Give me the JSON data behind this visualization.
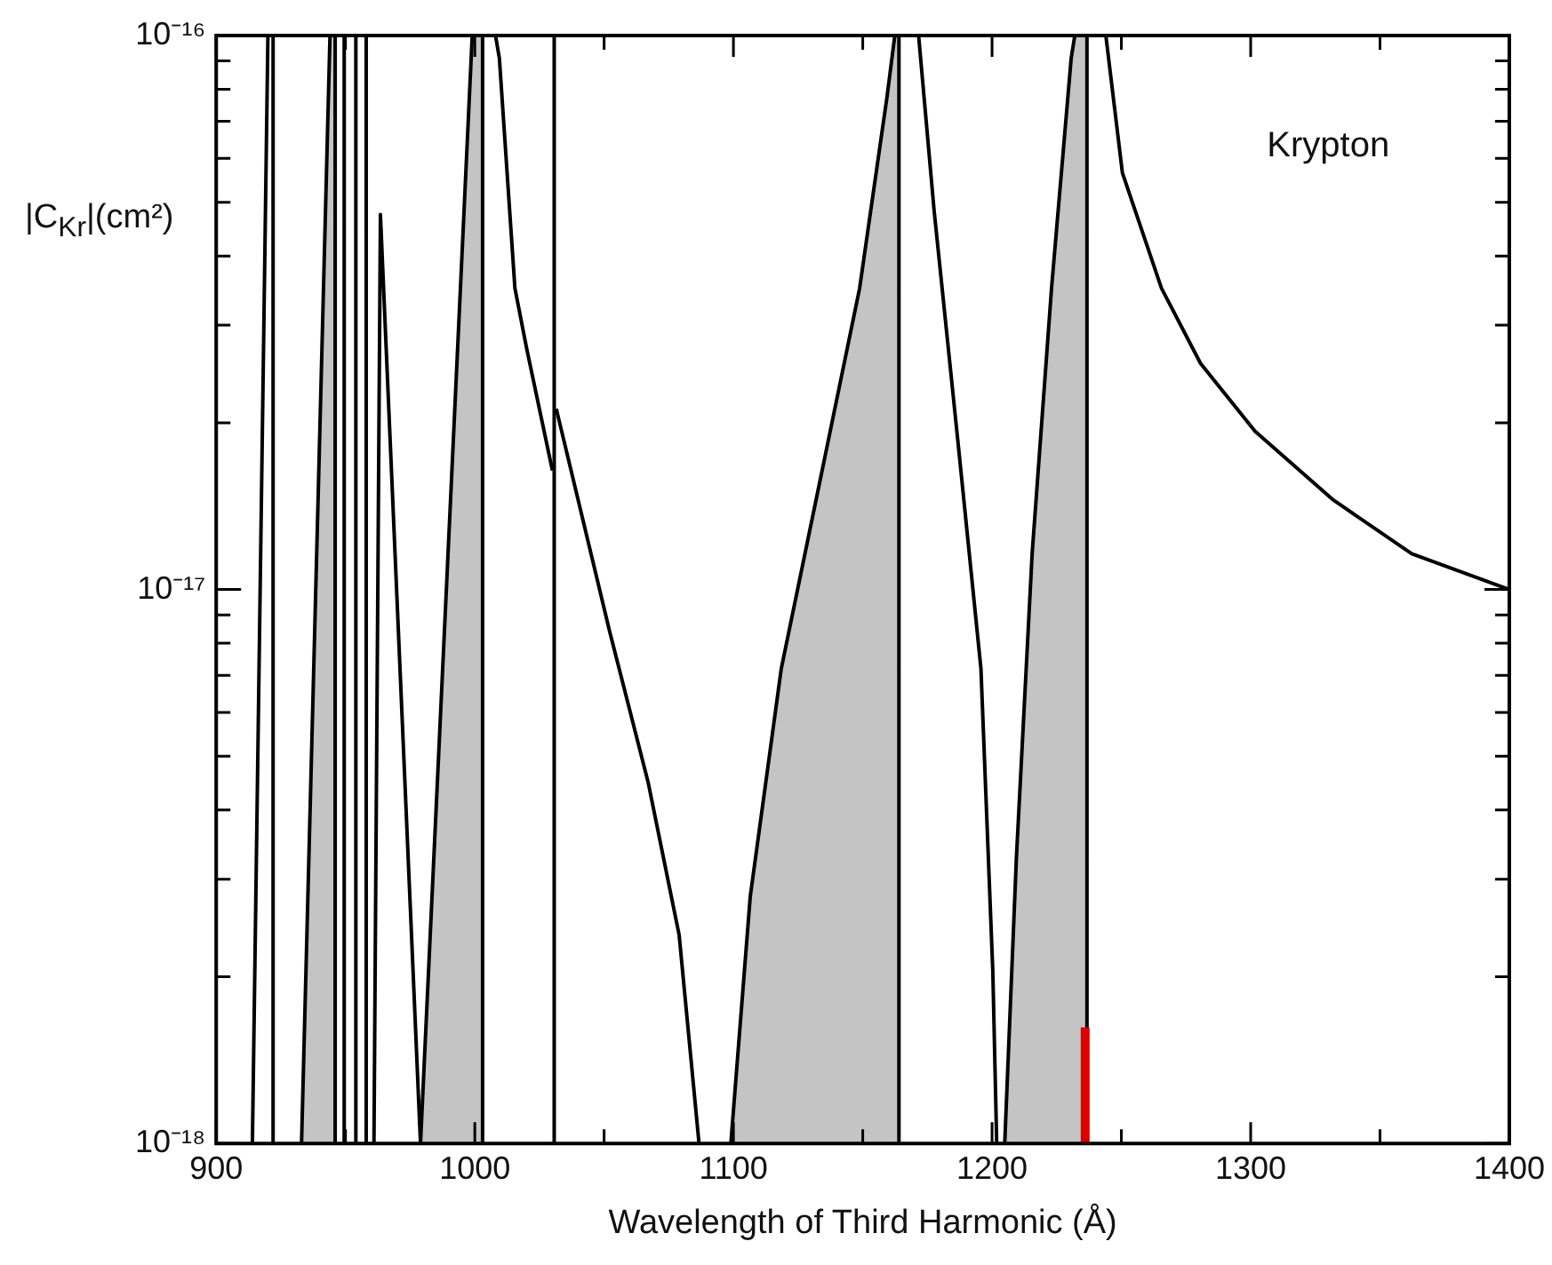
{
  "chart_data": {
    "type": "line",
    "xlabel": "Wavelength of Third Harmonic (Å)",
    "ylabel": "|C$_{Kr}$|(cm²)",
    "annotations": [
      "Krypton"
    ],
    "xlim": [
      900,
      1400
    ],
    "ylim": [
      1e-18,
      1e-16
    ],
    "log": "y",
    "grid": false,
    "legend": false,
    "marker": "none",
    "line_style": "solid",
    "xticks": [
      900,
      {
        "value": 950,
        "label": null
      },
      1000,
      {
        "value": 1050,
        "label": null
      },
      1100,
      {
        "value": 1150,
        "label": null
      },
      1200,
      {
        "value": 1250,
        "label": null
      },
      1300,
      {
        "value": 1350,
        "label": null
      },
      1400
    ],
    "yticks": [
      {
        "value": 1e-18,
        "label": "10⁻¹⁸"
      },
      {
        "value": 2e-18,
        "label": null
      },
      {
        "value": 3e-18,
        "label": null
      },
      {
        "value": 4e-18,
        "label": null
      },
      {
        "value": 5e-18,
        "label": null
      },
      {
        "value": 6e-18,
        "label": null
      },
      {
        "value": 7e-18,
        "label": null
      },
      {
        "value": 8e-18,
        "label": null
      },
      {
        "value": 9e-18,
        "label": null
      },
      {
        "value": 1e-17,
        "label": "10⁻¹⁷"
      },
      {
        "value": 2e-17,
        "label": null
      },
      {
        "value": 3e-17,
        "label": null
      },
      {
        "value": 4e-17,
        "label": null
      },
      {
        "value": 5e-17,
        "label": null
      },
      {
        "value": 6e-17,
        "label": null
      },
      {
        "value": 7e-17,
        "label": null
      },
      {
        "value": 8e-17,
        "label": null
      },
      {
        "value": 9e-17,
        "label": null
      },
      {
        "value": 1e-16,
        "label": "10⁻¹⁶"
      }
    ],
    "series": [
      {
        "color": "#000000",
        "x": [
          914,
          920
        ],
        "values": [
          1e-18,
          1e-16
        ]
      },
      {
        "color": "#000000",
        "x": [
          922,
          922
        ],
        "values": [
          1e-16,
          1e-18
        ]
      },
      {
        "color": "#000000",
        "x": [
          949.5,
          949.5
        ],
        "values": [
          1e-16,
          1e-18
        ]
      },
      {
        "color": "#000000",
        "x": [
          954,
          954
        ],
        "values": [
          1e-16,
          1e-18
        ]
      },
      {
        "color": "#000000",
        "x": [
          958,
          958
        ],
        "values": [
          1e-16,
          1e-18
        ]
      },
      {
        "color": "#000000",
        "x": [
          961,
          963.5,
          979
        ],
        "values": [
          1e-18,
          4.75e-17,
          1e-18
        ]
      },
      {
        "color": "#000000",
        "x": [
          1008,
          1009.5,
          1015.5,
          1020,
          1030
        ],
        "values": [
          1e-16,
          9.1e-17,
          3.5e-17,
          2.73e-17,
          1.64e-17
        ]
      },
      {
        "color": "#000000",
        "x": [
          1030.7,
          1030.7
        ],
        "values": [
          1e-16,
          1e-18
        ]
      },
      {
        "color": "#000000",
        "x": [
          1031.5,
          1052,
          1067,
          1079,
          1086.7
        ],
        "values": [
          2.12e-17,
          8.45e-18,
          4.49e-18,
          2.38e-18,
          1e-18
        ]
      },
      {
        "color": "#000000",
        "x": [
          1171.6,
          1177.6,
          1186.7,
          1195.7,
          1200.3,
          1201.8
        ],
        "values": [
          1e-16,
          4.83e-17,
          1.87e-17,
          7.2e-18,
          2.04e-18,
          1e-18
        ]
      },
      {
        "color": "#000000",
        "x": [
          1244,
          1250.4,
          1265.5,
          1280.6,
          1301.7,
          1332,
          1362.3,
          1400
        ],
        "values": [
          1e-16,
          5.65e-17,
          3.5e-17,
          2.56e-17,
          1.93e-17,
          1.45e-17,
          1.16e-17,
          1e-17
        ]
      },
      {
        "type": "area",
        "color": "#c4c4c4",
        "x": [
          933,
          944,
          946,
          946
        ],
        "values": [
          1e-18,
          1e-16,
          1e-16,
          1e-18
        ]
      },
      {
        "type": "area",
        "color": "#c4c4c4",
        "x": [
          979,
          999,
          1003,
          1003
        ],
        "values": [
          1e-18,
          1e-16,
          1e-16,
          1e-18
        ]
      },
      {
        "type": "area",
        "color": "#c4c4c4",
        "x": [
          1099,
          1106.5,
          1118.5,
          1133.7,
          1148.8,
          1159.4,
          1162.4,
          1164,
          1164
        ],
        "values": [
          1e-18,
          2.79e-18,
          7.2e-18,
          1.59e-17,
          3.5e-17,
          7.76e-17,
          1e-16,
          1e-16,
          1e-18
        ]
      },
      {
        "type": "area",
        "color": "#c4c4c4",
        "x": [
          1204.9,
          1209.4,
          1215.5,
          1223,
          1230.6,
          1232,
          1236.7,
          1236.7
        ],
        "values": [
          1e-18,
          3.27e-18,
          1.16e-17,
          3.5e-17,
          9.1e-17,
          1e-16,
          1e-16,
          1e-18
        ]
      },
      {
        "color": "#dd0000",
        "x": [
          1236,
          1236
        ],
        "values": [
          1e-18,
          1.62e-18
        ]
      }
    ]
  }
}
